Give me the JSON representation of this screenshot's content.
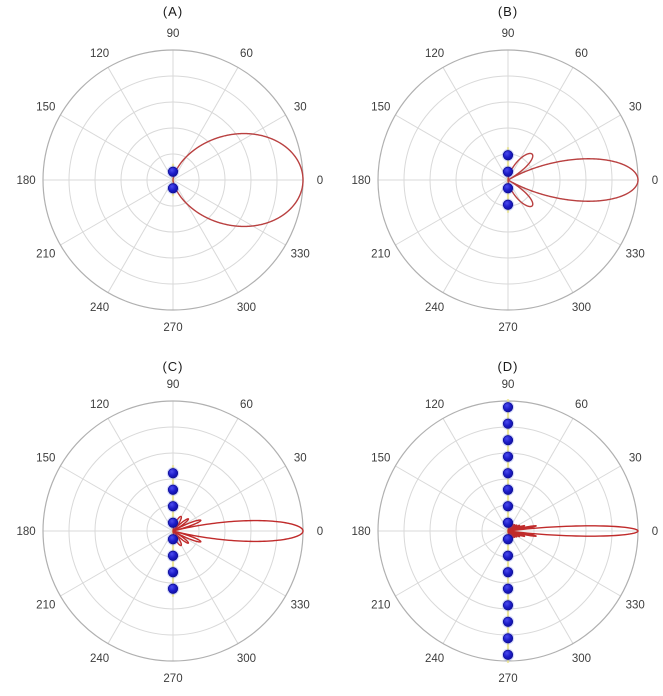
{
  "page": {
    "background": "#ffffff"
  },
  "palette": {
    "grid_line": "#d9d9d9",
    "outer_ring": "#b0b0b0",
    "tick_label": "#3d3d3d",
    "title_text": "#1a1a1a",
    "pattern_line": "#b94040",
    "pattern_line_dense": "#c02b2b",
    "element_fill_center": "#4a4aee",
    "element_fill": "#1c1cc8",
    "element_edge": "#10109a",
    "element_halo": "rgba(70,90,230,0.22)",
    "array_axis_line": "rgba(235,228,140,0.85)"
  },
  "axes": {
    "angle_tick_labels": [
      "0",
      "30",
      "60",
      "90",
      "120",
      "150",
      "180",
      "210",
      "240",
      "270",
      "300",
      "330"
    ],
    "angle_tick_values_deg": [
      0,
      30,
      60,
      90,
      120,
      150,
      180,
      210,
      240,
      270,
      300,
      330
    ],
    "radial_gridlines": [
      0.2,
      0.4,
      0.6,
      0.8,
      1.0
    ],
    "radial_max": 1.0,
    "grid": "on",
    "legend": "none"
  },
  "chart_data": [
    {
      "id": "A",
      "title": "(A)",
      "type": "polar-line",
      "n_elements": 2,
      "series": [
        {
          "name": "array-factor-pattern",
          "kind": "polar-curve",
          "formula": "AF(theta)=|sin(N*pi*(d/lambda)*sin(theta))/(N*sin(pi*(d/lambda)*sin(theta)))|",
          "n": 2,
          "d_over_lambda": 0.5,
          "theta_range_deg": [
            -90,
            90
          ],
          "peak_r": 1.0,
          "main_lobe_direction_deg": 0
        },
        {
          "name": "array-elements",
          "kind": "scatter",
          "marker": "filled-circle",
          "element_offsets_r": [
            -0.0635,
            0.0635
          ]
        }
      ]
    },
    {
      "id": "B",
      "title": "(B)",
      "type": "polar-line",
      "n_elements": 4,
      "series": [
        {
          "name": "array-factor-pattern",
          "kind": "polar-curve",
          "formula": "AF(theta)=|sin(N*pi*(d/lambda)*sin(theta))/(N*sin(pi*(d/lambda)*sin(theta)))|",
          "n": 4,
          "d_over_lambda": 0.5,
          "theta_range_deg": [
            -90,
            90
          ],
          "peak_r": 1.0,
          "main_lobe_direction_deg": 0
        },
        {
          "name": "array-elements",
          "kind": "scatter",
          "marker": "filled-circle",
          "element_offsets_r": [
            -0.1905,
            -0.0635,
            0.0635,
            0.1905
          ]
        }
      ]
    },
    {
      "id": "C",
      "title": "(C)",
      "type": "polar-line",
      "n_elements": 8,
      "series": [
        {
          "name": "array-factor-pattern",
          "kind": "polar-curve",
          "formula": "AF(theta)=|sin(N*pi*(d/lambda)*sin(theta))/(N*sin(pi*(d/lambda)*sin(theta)))|",
          "n": 8,
          "d_over_lambda": 0.5,
          "theta_range_deg": [
            -90,
            90
          ],
          "peak_r": 1.0,
          "main_lobe_direction_deg": 0
        },
        {
          "name": "array-elements",
          "kind": "scatter",
          "marker": "filled-circle",
          "element_offsets_r": [
            -0.4445,
            -0.3175,
            -0.1905,
            -0.0635,
            0.0635,
            0.1905,
            0.3175,
            0.4445
          ]
        }
      ]
    },
    {
      "id": "D",
      "title": "(D)",
      "type": "polar-line",
      "n_elements": 16,
      "series": [
        {
          "name": "array-factor-pattern",
          "kind": "polar-curve",
          "formula": "AF(theta)=|sin(N*pi*(d/lambda)*sin(theta))/(N*sin(pi*(d/lambda)*sin(theta)))|",
          "n": 16,
          "d_over_lambda": 0.5,
          "theta_range_deg": [
            -90,
            90
          ],
          "peak_r": 1.0,
          "main_lobe_direction_deg": 0
        },
        {
          "name": "array-elements",
          "kind": "scatter",
          "marker": "filled-circle",
          "element_offsets_r": [
            -0.9525,
            -0.8255,
            -0.6985,
            -0.5715,
            -0.4445,
            -0.3175,
            -0.1905,
            -0.0635,
            0.0635,
            0.1905,
            0.3175,
            0.4445,
            0.5715,
            0.6985,
            0.8255,
            0.9525
          ]
        }
      ]
    }
  ]
}
